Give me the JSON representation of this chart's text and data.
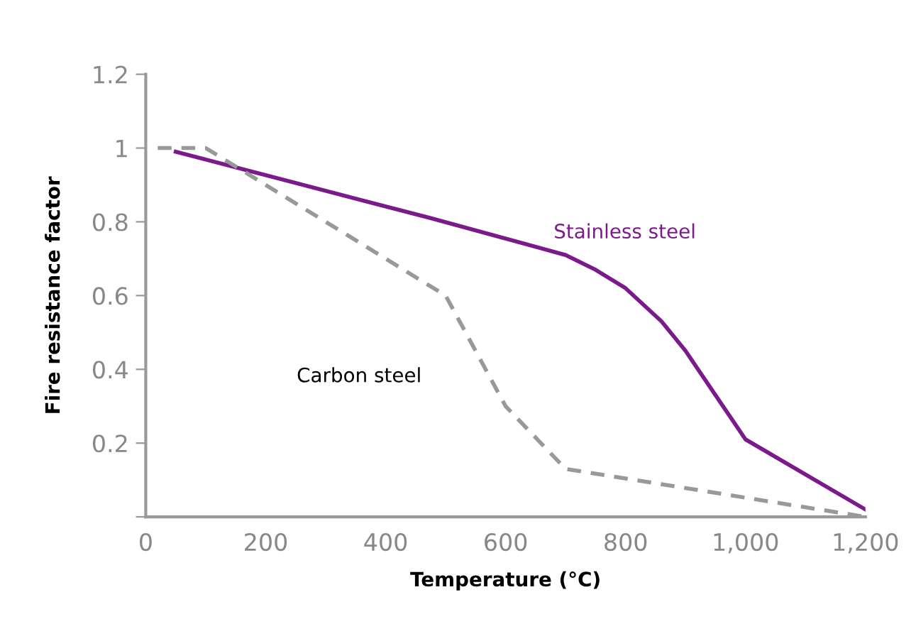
{
  "chart_data": {
    "type": "line",
    "xlabel": "Temperature (°C)",
    "ylabel": "Fire resistance factor",
    "xlim": [
      0,
      1200
    ],
    "xticks": [
      0,
      200,
      400,
      600,
      800,
      {
        "value": 1000,
        "label": "1,000"
      },
      {
        "value": 1200,
        "label": "1,200"
      }
    ],
    "ylim": [
      0,
      1.2
    ],
    "yticks": [
      {
        "value": 0,
        "label": null
      },
      0.2,
      0.4,
      0.6,
      0.8,
      1,
      1.2
    ],
    "grid": false,
    "legend": false,
    "marker": "none",
    "series": [
      {
        "name": "Stainless steel",
        "color": "#7b1a8a",
        "line_style": "solid",
        "x": [
          50,
          475,
          700,
          750,
          800,
          860,
          900,
          1000,
          1200
        ],
        "values": [
          0.99,
          0.81,
          0.71,
          0.67,
          0.62,
          0.53,
          0.45,
          0.21,
          0.02
        ]
      },
      {
        "name": "Carbon steel",
        "color": "#999999",
        "line_style": "dashed",
        "x": [
          20,
          100,
          200,
          500,
          600,
          700,
          1200
        ],
        "values": [
          1.0,
          1.0,
          0.9,
          0.6,
          0.3,
          0.13,
          0.0
        ]
      }
    ]
  }
}
